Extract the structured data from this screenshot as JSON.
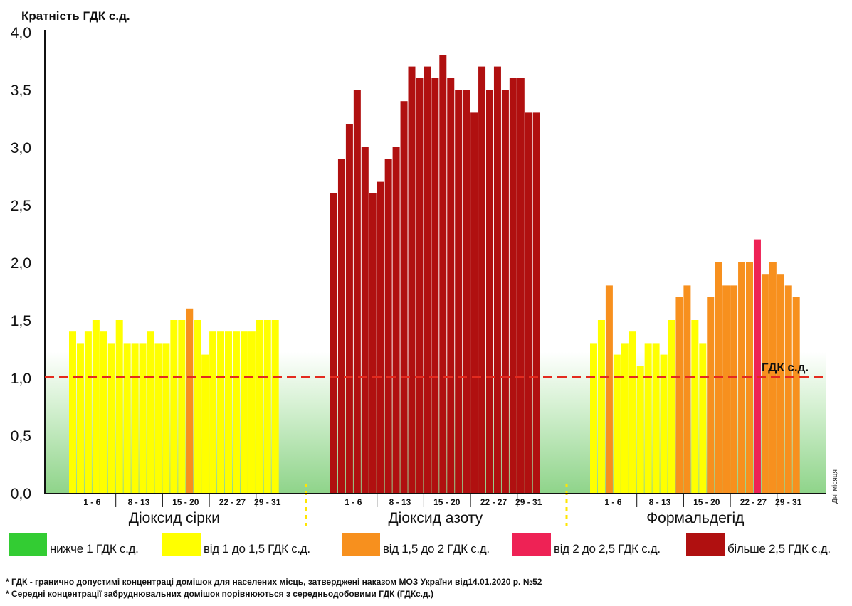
{
  "chart_data": {
    "type": "bar",
    "ylabel": "Кратність ГДК с.д.",
    "ylim": [
      0,
      4
    ],
    "yticks": [
      "0,0",
      "0,5",
      "1,0",
      "1,5",
      "2,0",
      "2,5",
      "3,0",
      "3,5",
      "4,0"
    ],
    "threshold": {
      "value": 1.0,
      "label": "ГДК с.д."
    },
    "day_axis_label": "Дні місяця",
    "day_groups": [
      "1 - 6",
      "8 - 13",
      "15 - 20",
      "22 - 27",
      "29 - 31"
    ],
    "series": [
      {
        "name": "Діоксид сірки",
        "values": [
          1.4,
          1.3,
          1.4,
          1.5,
          1.4,
          1.3,
          1.5,
          1.3,
          1.3,
          1.3,
          1.4,
          1.3,
          1.3,
          1.5,
          1.5,
          1.6,
          1.5,
          1.2,
          1.4,
          1.4,
          1.4,
          1.4,
          1.4,
          1.4,
          1.5,
          1.5,
          1.5
        ]
      },
      {
        "name": "Діоксид азоту",
        "values": [
          2.6,
          2.9,
          3.2,
          3.5,
          3.0,
          2.6,
          2.7,
          2.9,
          3.0,
          3.4,
          3.7,
          3.6,
          3.7,
          3.6,
          3.8,
          3.6,
          3.5,
          3.5,
          3.3,
          3.7,
          3.5,
          3.7,
          3.5,
          3.6,
          3.6,
          3.3,
          3.3
        ]
      },
      {
        "name": "Формальдегід",
        "values": [
          1.3,
          1.5,
          1.8,
          1.2,
          1.3,
          1.4,
          1.1,
          1.3,
          1.3,
          1.2,
          1.5,
          1.7,
          1.8,
          1.5,
          1.3,
          1.7,
          2.0,
          1.8,
          1.8,
          2.0,
          2.0,
          2.2,
          1.9,
          2.0,
          1.9,
          1.8,
          1.7
        ]
      }
    ],
    "color_bins": [
      {
        "label": "нижче 1 ГДК с.д.",
        "color": "#33cc33",
        "max": 1.0
      },
      {
        "label": "від 1 до 1,5 ГДК с.д.",
        "color": "#ffff00",
        "max": 1.5
      },
      {
        "label": "від 1,5 до 2 ГДК с.д.",
        "color": "#f7901e",
        "max": 2.0
      },
      {
        "label": "від 2 до 2,5 ГДК с.д.",
        "color": "#ee2255",
        "max": 2.5
      },
      {
        "label": "більше 2,5 ГДК с.д.",
        "color": "#b01010",
        "max": 99
      }
    ]
  },
  "notes": [
    "* ГДК - гранично допустимі концентраці домішок для населених місць, затверджені наказом МОЗ України від14.01.2020 р. №52",
    "* Середні концентрації забруднювальних домішок порівнюються з середньодобовими  ГДК (ГДКс.д.)"
  ]
}
